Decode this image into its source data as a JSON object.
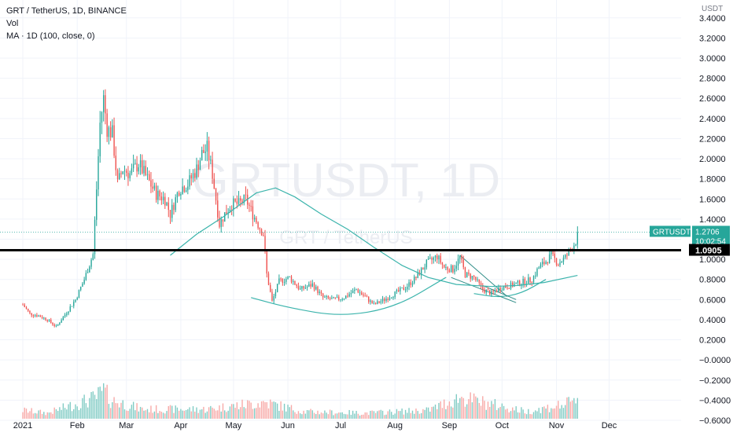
{
  "header": {
    "symbol_line": "GRT / TetherUS, 1D, BINANCE",
    "vol_label": "Vol",
    "ma_label": "MA · 1D (100, close, 0)"
  },
  "watermark": {
    "line1": "GRTUSDT, 1D",
    "line2": "GRT / TetherUS"
  },
  "chart_data": {
    "type": "candlestick",
    "symbol": "GRTUSDT",
    "interval": "1D",
    "exchange": "BINANCE",
    "currency_label": "USDT",
    "y_ticks": [
      "3.4000",
      "3.2000",
      "3.0000",
      "2.8000",
      "2.6000",
      "2.4000",
      "2.2000",
      "2.0000",
      "1.8000",
      "1.6000",
      "1.4000",
      "1.2000",
      "1.0000",
      "0.8000",
      "0.6000",
      "0.4000",
      "0.2000",
      "−0.0000",
      "−0.2000",
      "−0.4000",
      "−0.6000"
    ],
    "y_tick_values": [
      3.4,
      3.2,
      3.0,
      2.8,
      2.6,
      2.4,
      2.2,
      2.0,
      1.8,
      1.6,
      1.4,
      1.2,
      1.0,
      0.8,
      0.6,
      0.4,
      0.2,
      0.0,
      -0.2,
      -0.4,
      -0.6
    ],
    "ylim": [
      -0.6,
      3.5
    ],
    "x_ticks": [
      {
        "label": "2021",
        "date": "2021-01-01"
      },
      {
        "label": "Feb",
        "date": "2021-02-01"
      },
      {
        "label": "Mar",
        "date": "2021-03-01"
      },
      {
        "label": "Apr",
        "date": "2021-04-01"
      },
      {
        "label": "May",
        "date": "2021-05-01"
      },
      {
        "label": "Jun",
        "date": "2021-06-01"
      },
      {
        "label": "Jul",
        "date": "2021-07-01"
      },
      {
        "label": "Aug",
        "date": "2021-08-01"
      },
      {
        "label": "Sep",
        "date": "2021-09-01"
      },
      {
        "label": "Oct",
        "date": "2021-10-01"
      },
      {
        "label": "Nov",
        "date": "2021-11-01"
      },
      {
        "label": "Dec",
        "date": "2021-12-01"
      }
    ],
    "xlim": [
      "2020-12-19",
      "2022-01-11"
    ],
    "price_path": [
      [
        "2021-01-01",
        0.55
      ],
      [
        "2021-01-05",
        0.46
      ],
      [
        "2021-01-10",
        0.44
      ],
      [
        "2021-01-15",
        0.4
      ],
      [
        "2021-01-20",
        0.33
      ],
      [
        "2021-01-25",
        0.45
      ],
      [
        "2021-01-31",
        0.6
      ],
      [
        "2021-02-05",
        0.8
      ],
      [
        "2021-02-10",
        1.05
      ],
      [
        "2021-02-12",
        1.7
      ],
      [
        "2021-02-14",
        2.35
      ],
      [
        "2021-02-16",
        2.6
      ],
      [
        "2021-02-18",
        2.3
      ],
      [
        "2021-02-21",
        2.25
      ],
      [
        "2021-02-24",
        1.75
      ],
      [
        "2021-02-27",
        1.9
      ],
      [
        "2021-03-03",
        1.85
      ],
      [
        "2021-03-08",
        1.95
      ],
      [
        "2021-03-13",
        1.8
      ],
      [
        "2021-03-18",
        1.65
      ],
      [
        "2021-03-23",
        1.6
      ],
      [
        "2021-03-26",
        1.45
      ],
      [
        "2021-03-31",
        1.7
      ],
      [
        "2021-04-05",
        1.75
      ],
      [
        "2021-04-10",
        1.9
      ],
      [
        "2021-04-13",
        2.05
      ],
      [
        "2021-04-16",
        2.1
      ],
      [
        "2021-04-19",
        1.85
      ],
      [
        "2021-04-23",
        1.35
      ],
      [
        "2021-04-26",
        1.45
      ],
      [
        "2021-04-30",
        1.55
      ],
      [
        "2021-05-04",
        1.55
      ],
      [
        "2021-05-08",
        1.6
      ],
      [
        "2021-05-12",
        1.45
      ],
      [
        "2021-05-15",
        1.35
      ],
      [
        "2021-05-18",
        1.25
      ],
      [
        "2021-05-20",
        0.85
      ],
      [
        "2021-05-23",
        0.58
      ],
      [
        "2021-05-27",
        0.78
      ],
      [
        "2021-06-02",
        0.82
      ],
      [
        "2021-06-08",
        0.7
      ],
      [
        "2021-06-15",
        0.75
      ],
      [
        "2021-06-21",
        0.62
      ],
      [
        "2021-06-27",
        0.6
      ],
      [
        "2021-07-03",
        0.62
      ],
      [
        "2021-07-10",
        0.7
      ],
      [
        "2021-07-20",
        0.55
      ],
      [
        "2021-07-26",
        0.6
      ],
      [
        "2021-08-01",
        0.66
      ],
      [
        "2021-08-07",
        0.72
      ],
      [
        "2021-08-13",
        0.82
      ],
      [
        "2021-08-19",
        0.96
      ],
      [
        "2021-08-25",
        1.03
      ],
      [
        "2021-08-29",
        0.92
      ],
      [
        "2021-09-03",
        0.9
      ],
      [
        "2021-09-07",
        1.02
      ],
      [
        "2021-09-10",
        0.85
      ],
      [
        "2021-09-15",
        0.82
      ],
      [
        "2021-09-20",
        0.7
      ],
      [
        "2021-09-25",
        0.66
      ],
      [
        "2021-09-30",
        0.72
      ],
      [
        "2021-10-06",
        0.74
      ],
      [
        "2021-10-12",
        0.77
      ],
      [
        "2021-10-18",
        0.8
      ],
      [
        "2021-10-22",
        0.92
      ],
      [
        "2021-10-26",
        0.98
      ],
      [
        "2021-10-29",
        1.04
      ],
      [
        "2021-11-02",
        0.96
      ],
      [
        "2021-11-06",
        1.02
      ],
      [
        "2021-11-10",
        1.12
      ],
      [
        "2021-11-12",
        1.18
      ],
      [
        "2021-11-13",
        1.27
      ]
    ],
    "ma_100": [
      [
        "2021-03-26",
        1.04
      ],
      [
        "2021-04-10",
        1.25
      ],
      [
        "2021-04-25",
        1.42
      ],
      [
        "2021-05-06",
        1.56
      ],
      [
        "2021-05-14",
        1.66
      ],
      [
        "2021-05-25",
        1.71
      ],
      [
        "2021-06-05",
        1.62
      ],
      [
        "2021-06-20",
        1.45
      ],
      [
        "2021-07-05",
        1.3
      ],
      [
        "2021-07-20",
        1.12
      ],
      [
        "2021-08-05",
        0.94
      ],
      [
        "2021-08-20",
        0.82
      ],
      [
        "2021-09-05",
        0.75
      ],
      [
        "2021-09-25",
        0.73
      ],
      [
        "2021-10-10",
        0.74
      ],
      [
        "2021-10-25",
        0.77
      ],
      [
        "2021-11-13",
        0.84
      ]
    ],
    "volume_ticks": [
      [
        "2021-01-01",
        0.18
      ],
      [
        "2021-01-15",
        0.12
      ],
      [
        "2021-02-12",
        0.45
      ],
      [
        "2021-02-16",
        0.6
      ],
      [
        "2021-02-20",
        0.4
      ],
      [
        "2021-03-10",
        0.2
      ],
      [
        "2021-04-15",
        0.2
      ],
      [
        "2021-05-19",
        0.35
      ],
      [
        "2021-06-10",
        0.15
      ],
      [
        "2021-07-15",
        0.12
      ],
      [
        "2021-08-20",
        0.18
      ],
      [
        "2021-09-07",
        0.45
      ],
      [
        "2021-10-15",
        0.15
      ],
      [
        "2021-11-05",
        0.3
      ],
      [
        "2021-11-12",
        0.35
      ]
    ],
    "annotations": {
      "horizontal_level": {
        "value": 1.0905,
        "label": "1.0905"
      },
      "last_price": {
        "symbol_label": "GRTUSDT",
        "value_label": "1.2706",
        "countdown": "10:02:54",
        "value": 1.2706
      },
      "bowl_curve": [
        [
          "2021-05-11",
          0.62
        ],
        [
          "2021-06-01",
          0.52
        ],
        [
          "2021-07-01",
          0.43
        ],
        [
          "2021-08-01",
          0.52
        ],
        [
          "2021-08-30",
          0.82
        ]
      ],
      "sub_curve": [
        [
          "2021-09-15",
          0.66
        ],
        [
          "2021-09-29",
          0.62
        ],
        [
          "2021-10-12",
          0.66
        ],
        [
          "2021-10-26",
          0.8
        ]
      ],
      "trendlines": [
        [
          [
            "2021-09-07",
            1.04
          ],
          [
            "2021-10-04",
            0.63
          ]
        ],
        [
          [
            "2021-09-02",
            0.82
          ],
          [
            "2021-10-09",
            0.57
          ]
        ],
        [
          [
            "2021-09-20",
            0.74
          ],
          [
            "2021-10-09",
            0.6
          ]
        ]
      ]
    },
    "colors": {
      "up": "#26a69a",
      "down": "#ef5350",
      "volume_up": "#80cbc4",
      "volume_down": "#f7a9a7",
      "ma_and_drawings": "#3cb4ac",
      "level_line": "#000000",
      "last_price_label": "#26a69a",
      "grid": "#f0f3fa"
    },
    "grid": true,
    "legend_position": "top-left"
  }
}
